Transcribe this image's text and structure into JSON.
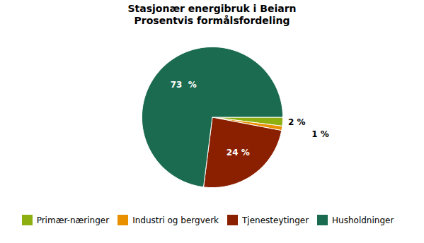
{
  "chart_data": {
    "type": "pie",
    "title": "Stasjonær energibruk i Beiarn",
    "subtitle": "Prosentvis formålsfordeling",
    "categories": [
      "Primær-næringer",
      "Industri og bergverk",
      "Tjenesteytinger",
      "Husholdninger"
    ],
    "values": [
      2,
      1,
      24,
      73
    ],
    "value_labels": [
      "2 %",
      "1 %",
      "24 %",
      "73  %"
    ],
    "colors": [
      "#8db010",
      "#e89000",
      "#8b2000",
      "#1a6b50"
    ],
    "data_labels": true,
    "legend": "bottom"
  }
}
